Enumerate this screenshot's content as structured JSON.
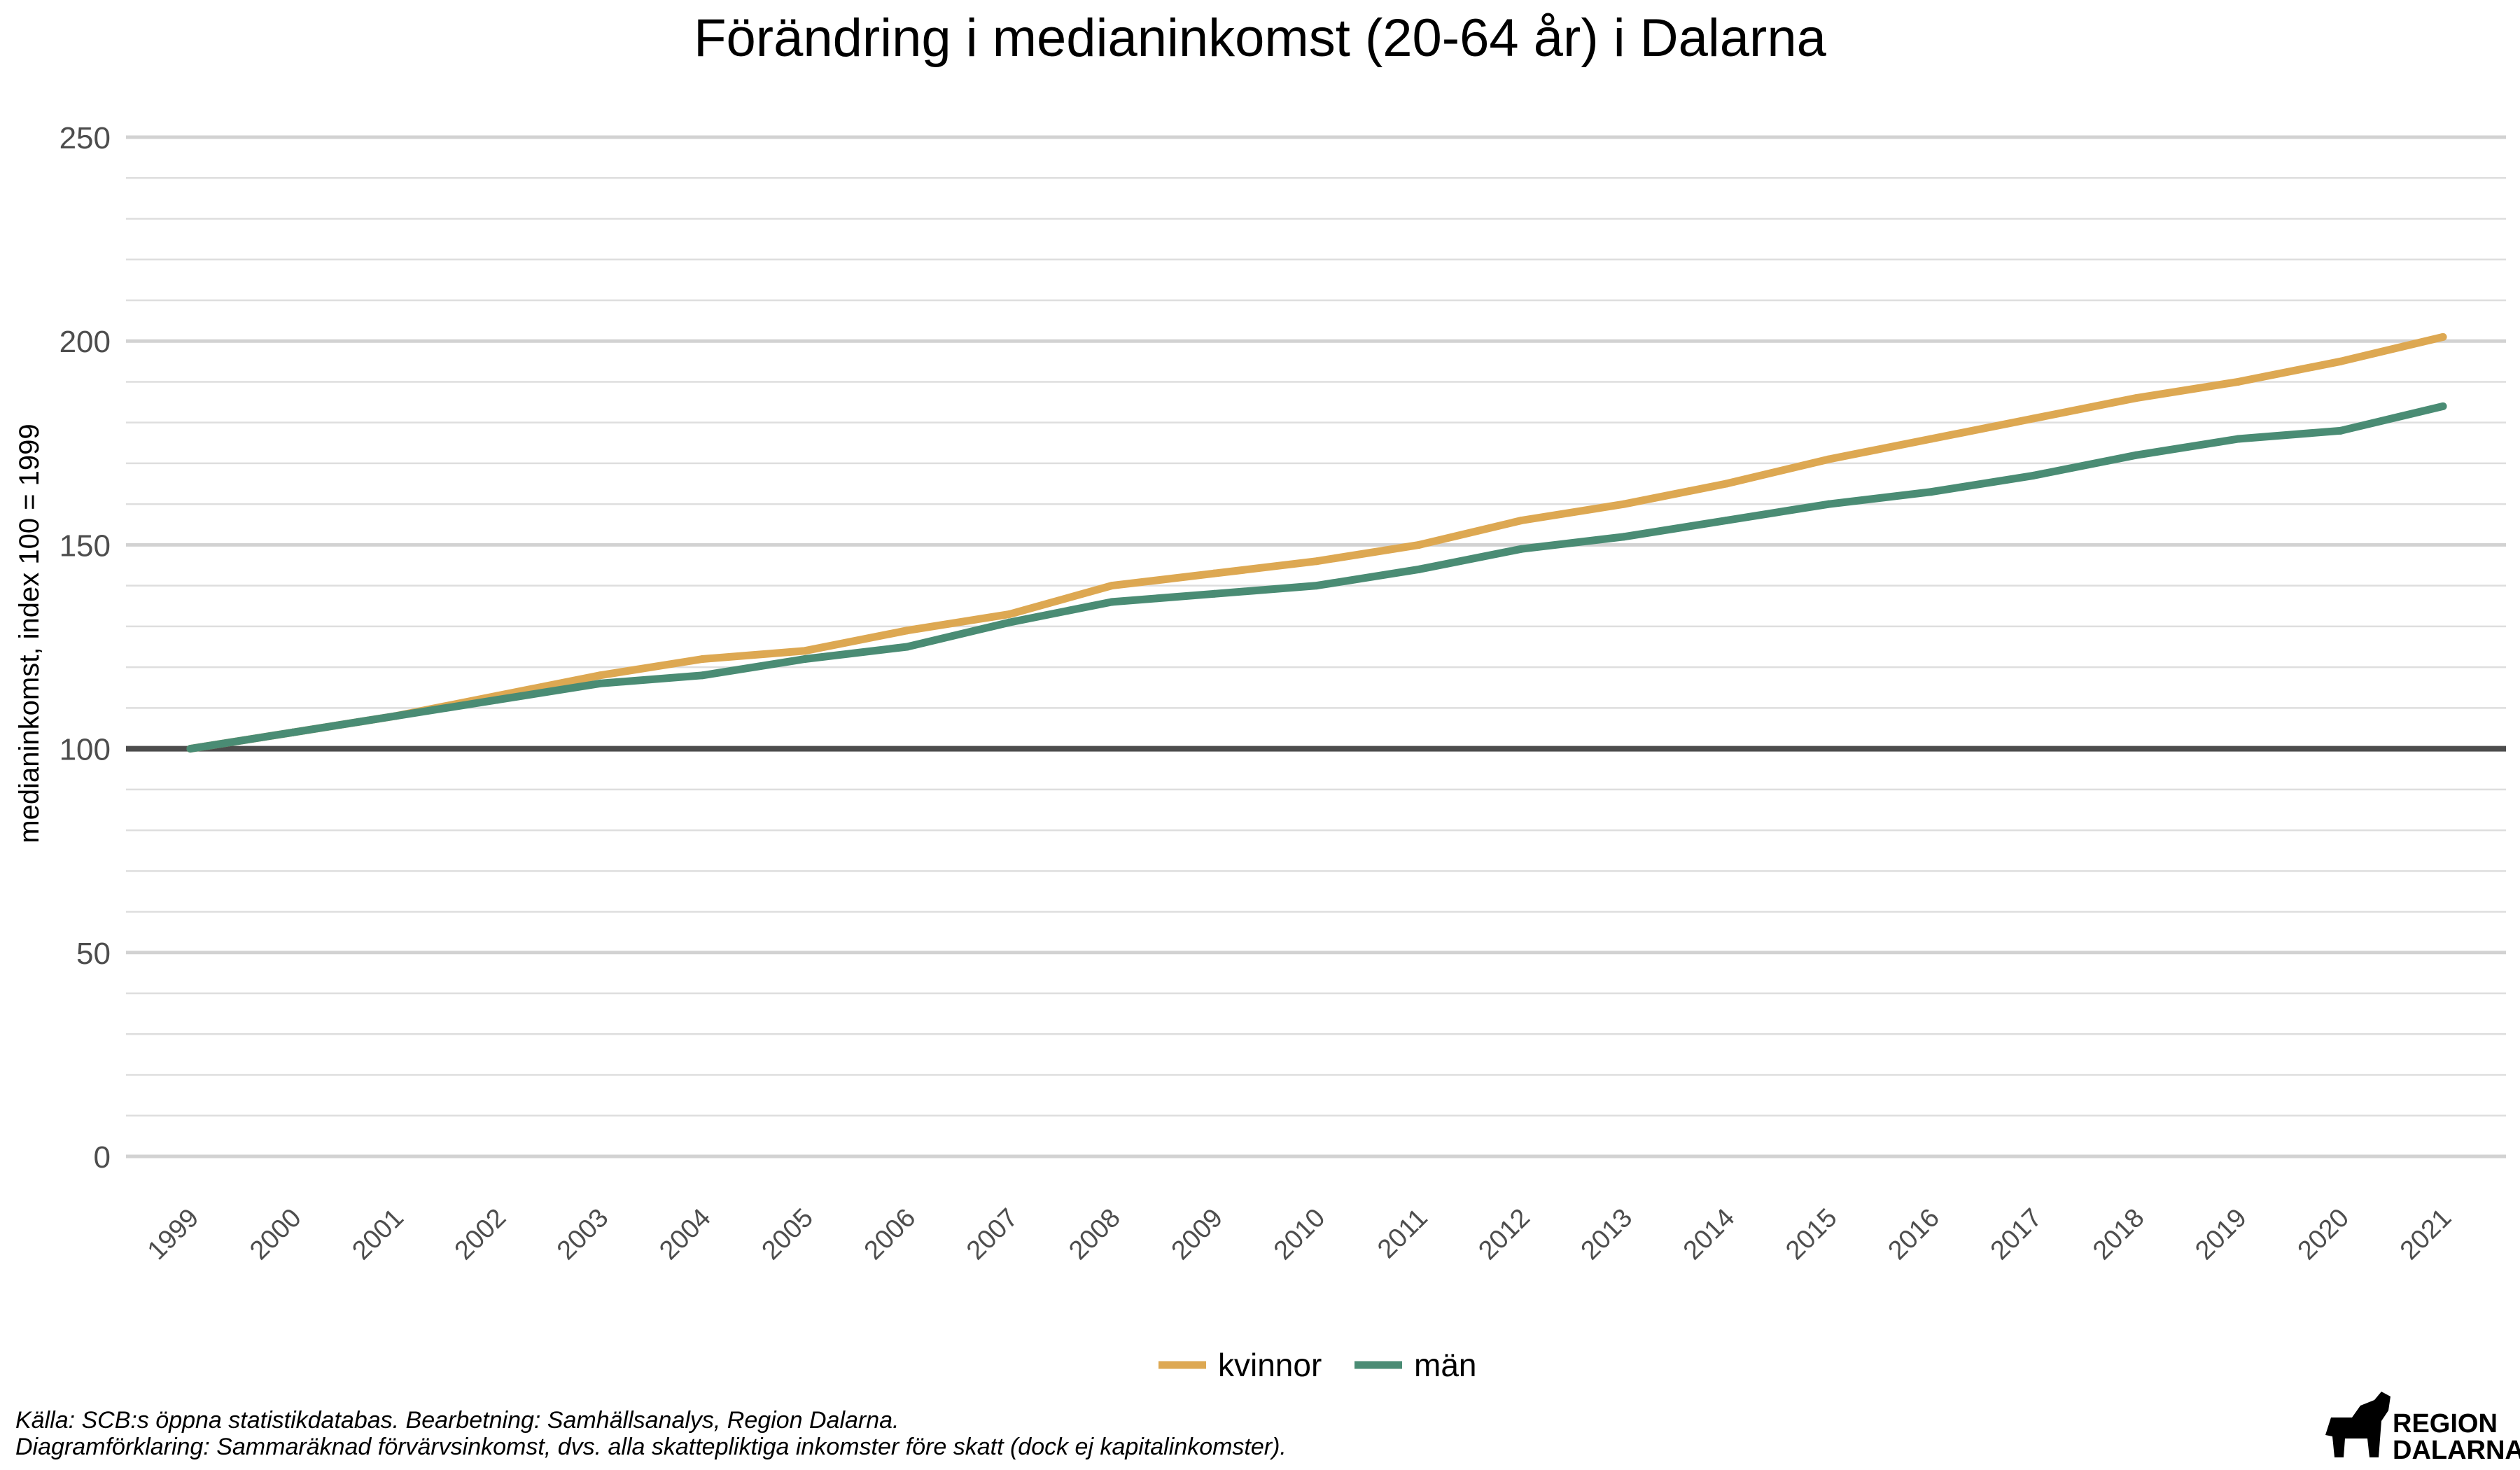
{
  "chart_data": {
    "type": "line",
    "title": "Förändring i medianinkomst (20-64 år) i Dalarna",
    "xlabel": "",
    "ylabel": "medianinkomst, index 100 = 1999",
    "ylim": [
      0,
      250
    ],
    "yticks": [
      0,
      50,
      100,
      150,
      200,
      250
    ],
    "grid": true,
    "legend_position": "bottom",
    "reference_line": 100,
    "categories": [
      "1999",
      "2000",
      "2001",
      "2002",
      "2003",
      "2004",
      "2005",
      "2006",
      "2007",
      "2008",
      "2009",
      "2010",
      "2011",
      "2012",
      "2013",
      "2014",
      "2015",
      "2016",
      "2017",
      "2018",
      "2019",
      "2020",
      "2021"
    ],
    "series": [
      {
        "name": "kvinnor",
        "color": "#dda852",
        "values": [
          100,
          104,
          108,
          113,
          118,
          122,
          124,
          129,
          133,
          140,
          143,
          146,
          150,
          156,
          160,
          165,
          171,
          176,
          181,
          186,
          190,
          195,
          201
        ]
      },
      {
        "name": "män",
        "color": "#4a8c74",
        "values": [
          100,
          104,
          108,
          112,
          116,
          118,
          122,
          125,
          131,
          136,
          138,
          140,
          144,
          149,
          152,
          156,
          160,
          163,
          167,
          172,
          176,
          178,
          184
        ]
      }
    ]
  },
  "caption": {
    "line1": "Källa: SCB:s öppna statistikdatabas. Bearbetning: Samhällsanalys, Region Dalarna.",
    "line2": "Diagramförklaring: Sammaräknad förvärvsinkomst, dvs. alla skattepliktiga inkomster före skatt (dock ej kapitalinkomster)."
  },
  "logo": {
    "line1": "REGION",
    "line2": "DALARNA"
  }
}
